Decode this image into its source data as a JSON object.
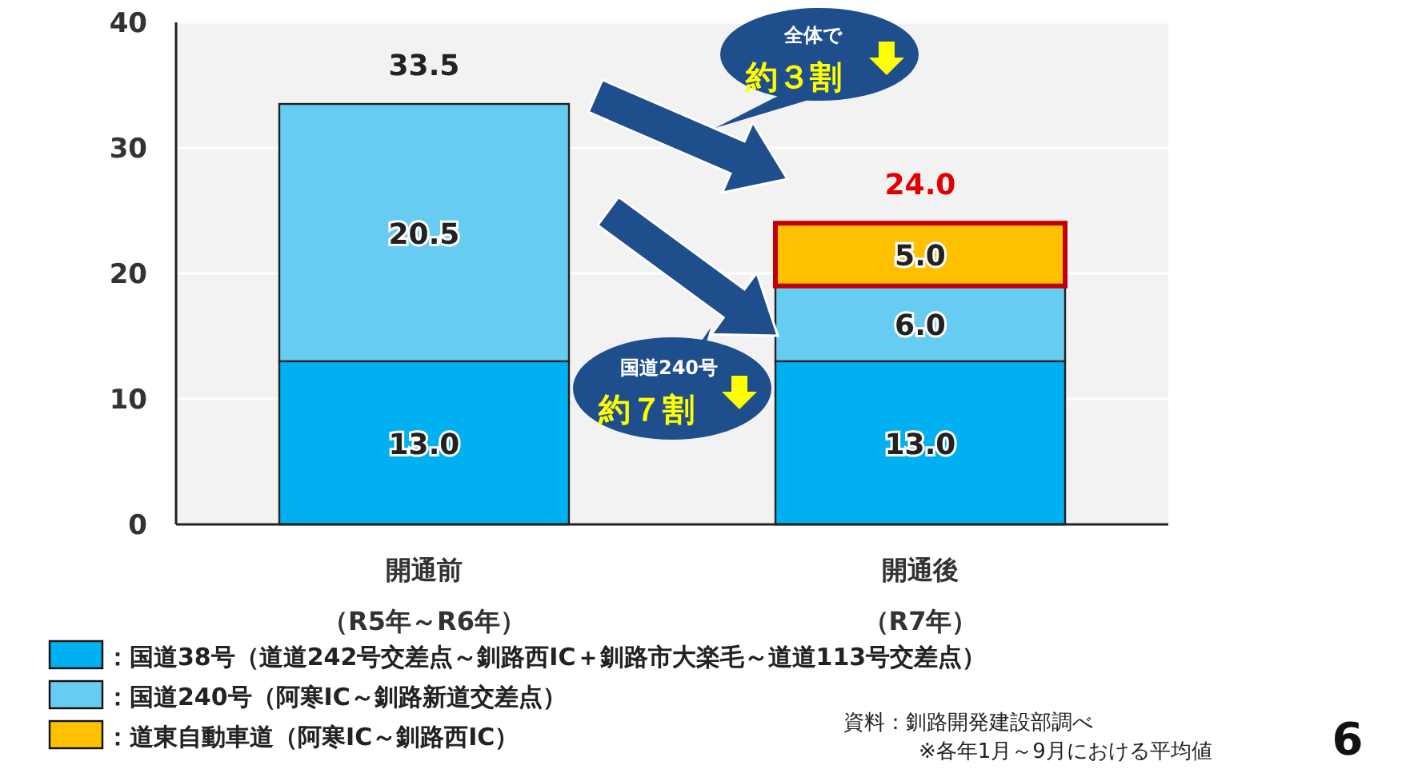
{
  "chart_data": {
    "type": "bar",
    "stacked": true,
    "categories": [
      "開通前（R5年～R6年）",
      "開通後（R7年）"
    ],
    "series": [
      {
        "name": "：国道38号（道道242号交差点～釧路西IC＋釧路市大楽毛～道道113号交差点）",
        "color": "#00b0f0",
        "values": [
          13.0,
          13.0
        ],
        "value_labels": [
          "13.0",
          "13.0"
        ]
      },
      {
        "name": "：国道240号（阿寒IC～釧路新道交差点）",
        "color": "#66ccf2",
        "values": [
          20.5,
          6.0
        ],
        "value_labels": [
          "20.5",
          "6.0"
        ]
      },
      {
        "name": "：道東自動車道（阿寒IC～釧路西IC）",
        "color": "#ffc000",
        "values": [
          null,
          5.0
        ],
        "value_labels": [
          null,
          "5.0"
        ]
      }
    ],
    "totals": [
      "33.5",
      "24.0"
    ],
    "ylim": [
      0,
      40
    ],
    "yticks": [
      0,
      10,
      20,
      30,
      40
    ],
    "grid": "y",
    "legend": "bottom",
    "annotations": [
      "全体で",
      "約３割",
      "国道240号",
      "約７割",
      "資料：釧路開発建設部調べ",
      "※各年1月～9月における平均値",
      "6"
    ]
  }
}
